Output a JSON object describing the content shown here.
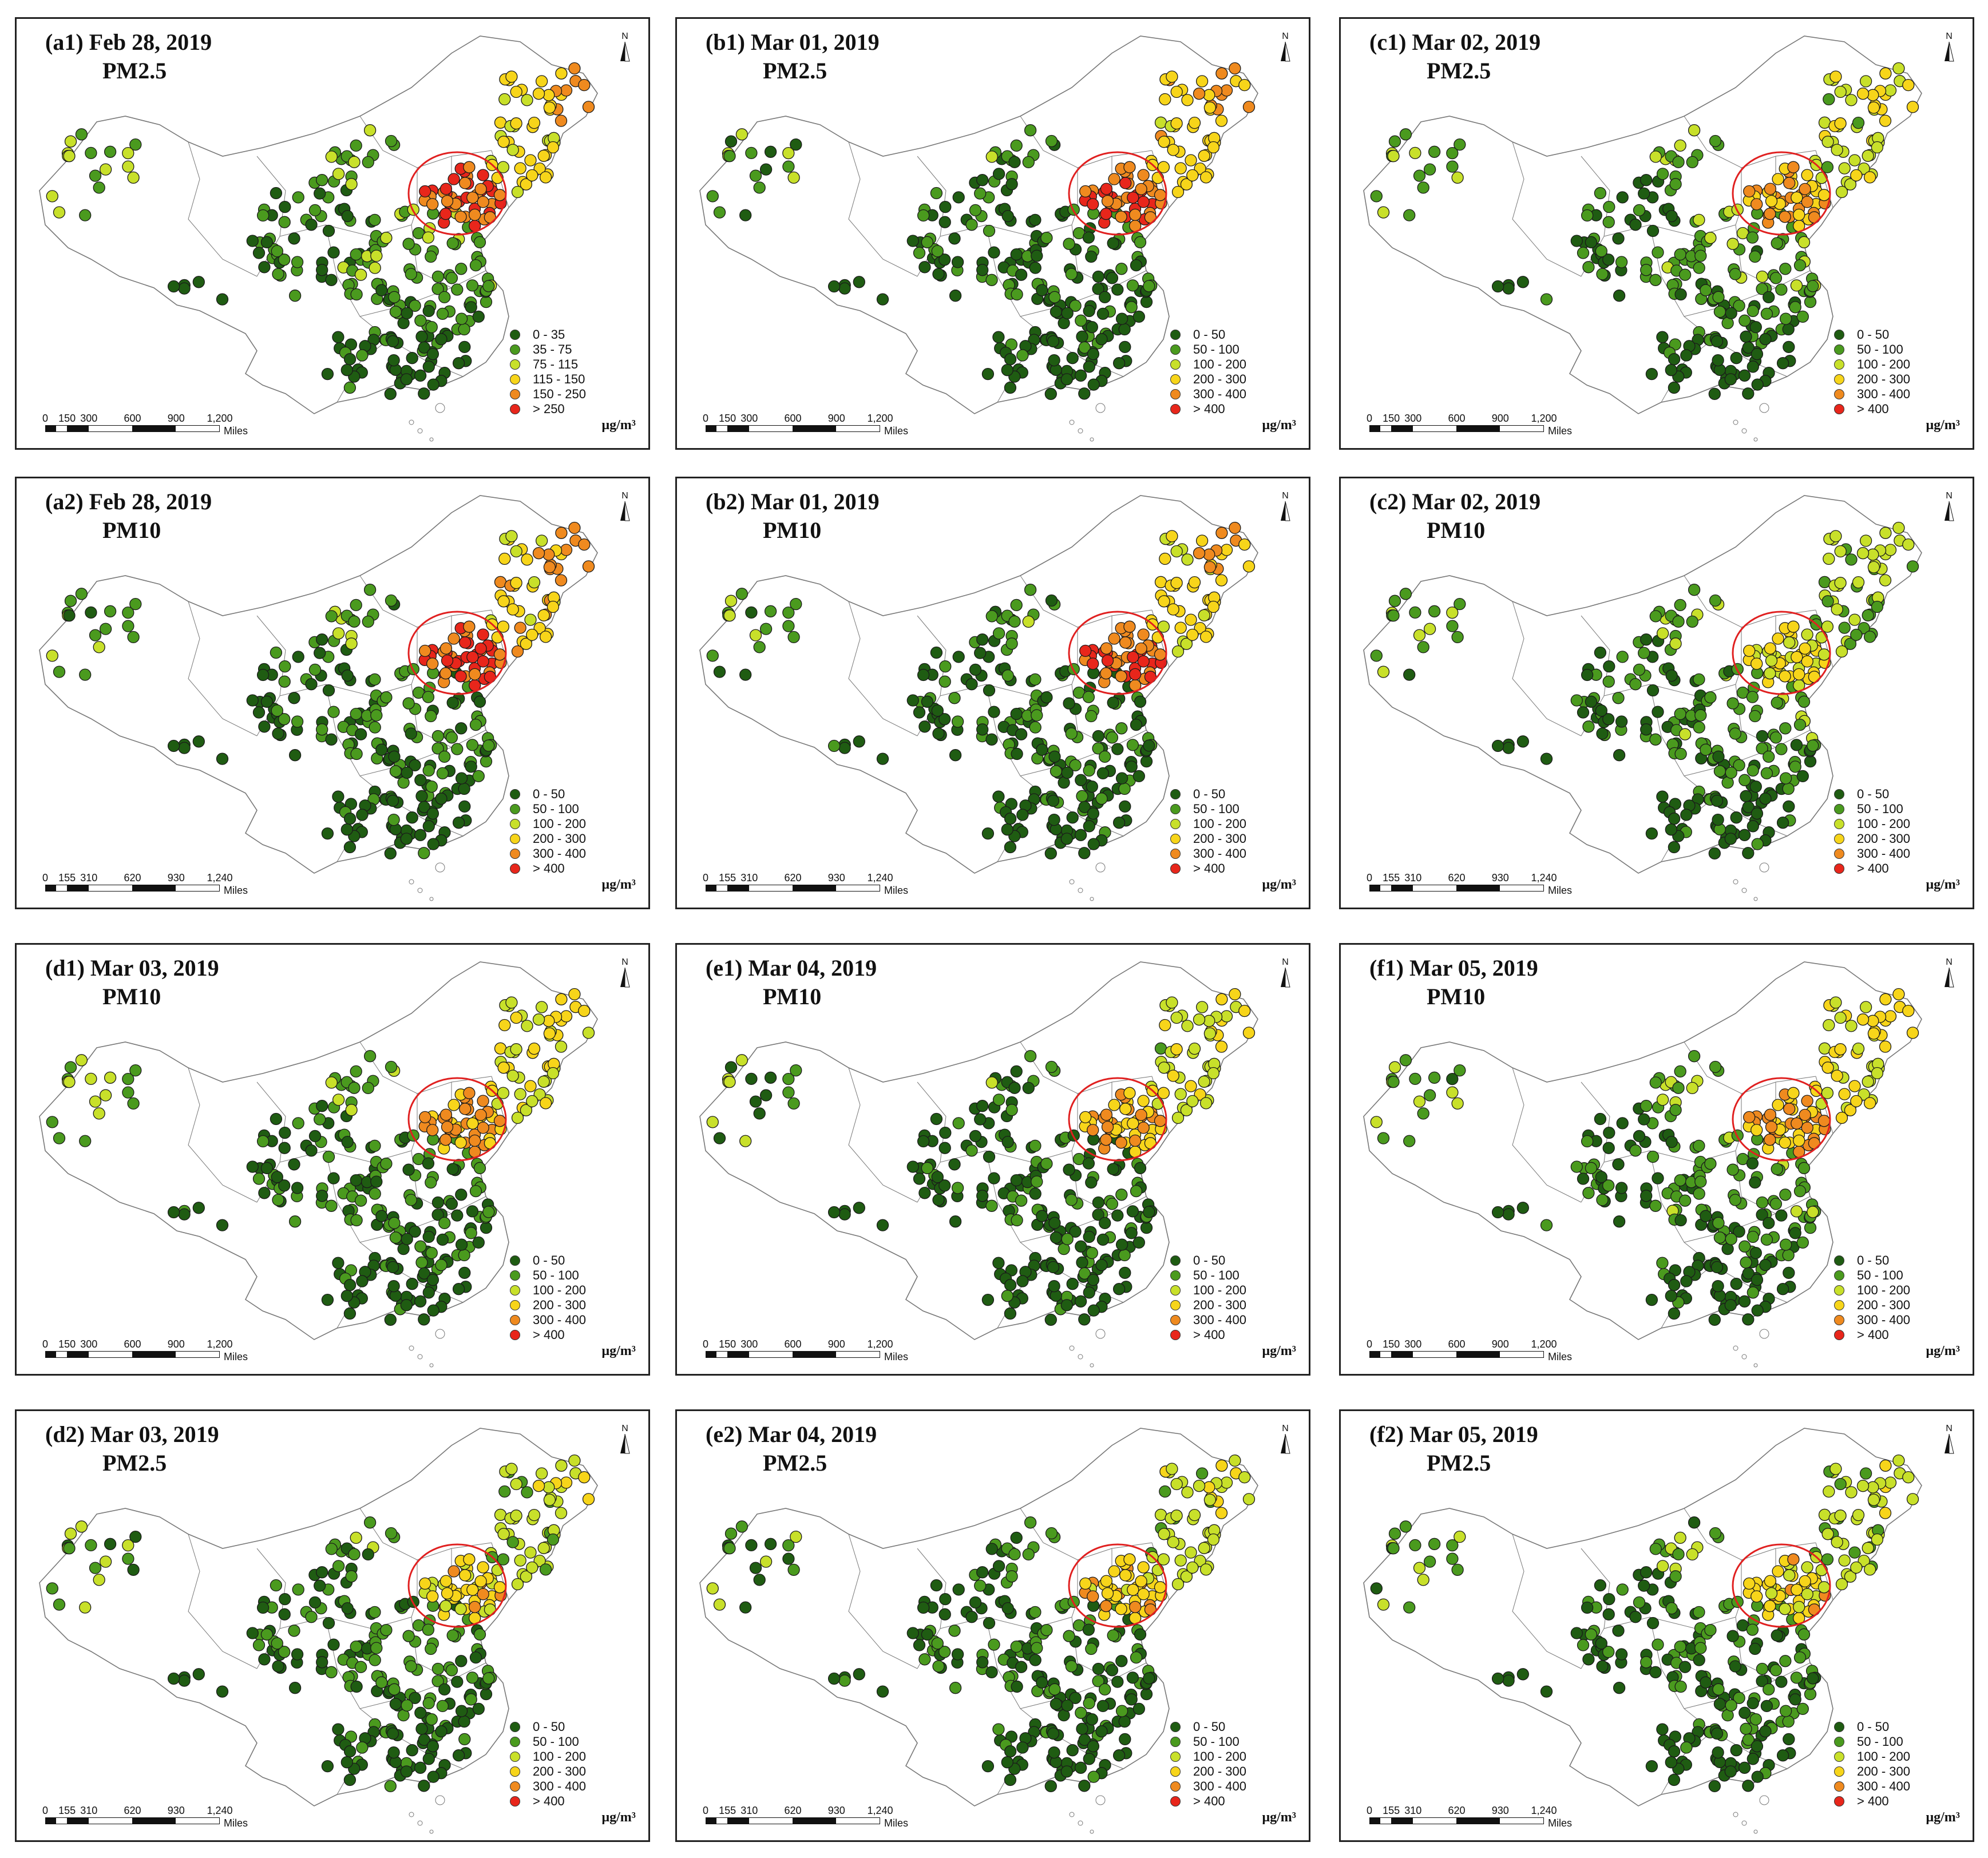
{
  "colors": {
    "c0": "#1f5c12",
    "c1": "#4a9a1e",
    "c2": "#c8e02a",
    "c3": "#f7d51a",
    "c4": "#ef8a1f",
    "c5": "#e8261b",
    "outline": "#777777",
    "circle": "#e02020"
  },
  "north_label": "N",
  "scales": {
    "s150": {
      "ticks": [
        "0",
        "150",
        "300",
        "600",
        "900",
        "1,200"
      ],
      "unit": "Miles"
    },
    "s155": {
      "ticks": [
        "0",
        "155",
        "310",
        "620",
        "930",
        "1,240"
      ],
      "unit": "Miles"
    }
  },
  "legends": {
    "pm25_a1": [
      "0 - 35",
      "35 - 75",
      "75 - 115",
      "115 - 150",
      "150 - 250",
      "> 250"
    ],
    "standard": [
      "0 - 50",
      "50 - 100",
      "100 - 200",
      "200 - 300",
      "300 - 400",
      "> 400"
    ]
  },
  "unit_label": "μg/m³",
  "panels": [
    {
      "id": "a1",
      "title": "(a1) Feb 28, 2019",
      "variable": "PM2.5",
      "legend": "pm25_a1",
      "scale": "s150",
      "severity": [
        0.35,
        0.85
      ]
    },
    {
      "id": "b1",
      "title": "(b1) Mar 01, 2019",
      "variable": "PM2.5",
      "legend": "standard",
      "scale": "s150",
      "severity": [
        0.1,
        0.9
      ]
    },
    {
      "id": "c1",
      "title": "(c1) Mar 02, 2019",
      "variable": "PM2.5",
      "legend": "standard",
      "scale": "s150",
      "severity": [
        0.3,
        0.55
      ]
    },
    {
      "id": "a2",
      "title": "(a2) Feb 28, 2019",
      "variable": "PM10",
      "legend": "standard",
      "scale": "s155",
      "severity": [
        0.2,
        0.9
      ]
    },
    {
      "id": "b2",
      "title": "(b2) Mar 01, 2019",
      "variable": "PM10",
      "legend": "standard",
      "scale": "s155",
      "severity": [
        0.1,
        0.85
      ]
    },
    {
      "id": "c2",
      "title": "(c2) Mar 02, 2019",
      "variable": "PM10",
      "legend": "standard",
      "scale": "s155",
      "severity": [
        0.3,
        0.3
      ]
    },
    {
      "id": "d1",
      "title": "(d1) Mar 03, 2019",
      "variable": "PM10",
      "legend": "standard",
      "scale": "s150",
      "severity": [
        0.2,
        0.6
      ]
    },
    {
      "id": "e1",
      "title": "(e1) Mar 04, 2019",
      "variable": "PM10",
      "legend": "standard",
      "scale": "s150",
      "severity": [
        0.05,
        0.55
      ]
    },
    {
      "id": "f1",
      "title": "(f1) Mar 05, 2019",
      "variable": "PM10",
      "legend": "standard",
      "scale": "s150",
      "severity": [
        0.3,
        0.6
      ]
    },
    {
      "id": "d2",
      "title": "(d2) Mar 03, 2019",
      "variable": "PM2.5",
      "legend": "standard",
      "scale": "s155",
      "severity": [
        0.2,
        0.4
      ]
    },
    {
      "id": "e2",
      "title": "(e2) Mar 04, 2019",
      "variable": "PM2.5",
      "legend": "standard",
      "scale": "s155",
      "severity": [
        0.1,
        0.45
      ]
    },
    {
      "id": "f2",
      "title": "(f2) Mar 05, 2019",
      "variable": "PM2.5",
      "legend": "standard",
      "scale": "s155",
      "severity": [
        0.2,
        0.4
      ]
    }
  ]
}
